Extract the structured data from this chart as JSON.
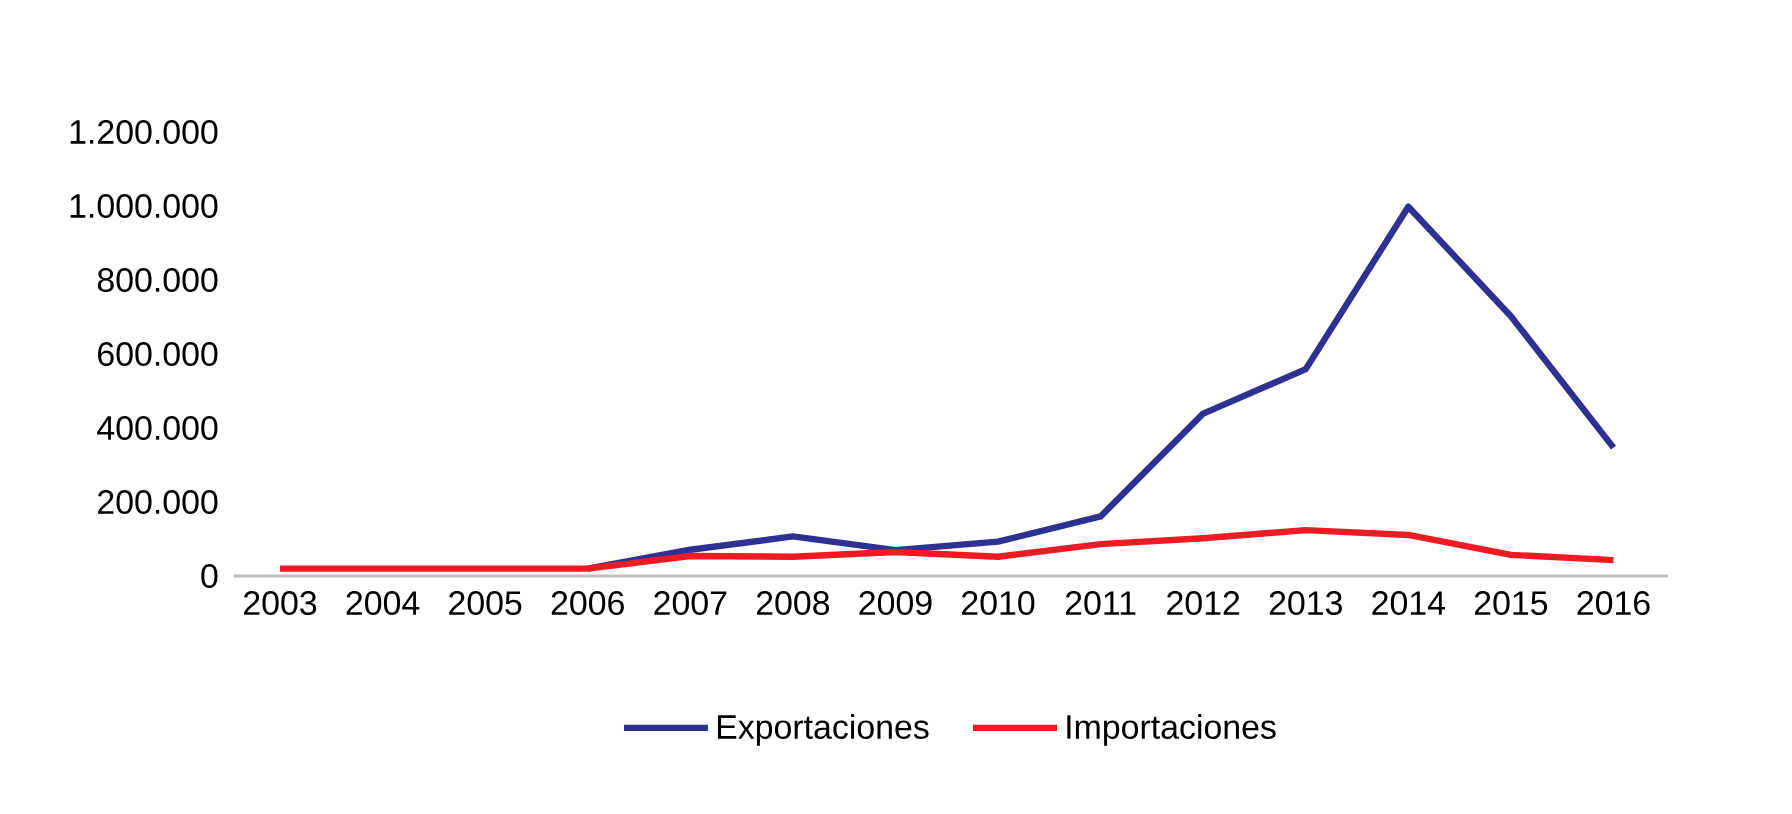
{
  "chart_data": {
    "type": "line",
    "categories": [
      "2003",
      "2004",
      "2005",
      "2006",
      "2007",
      "2008",
      "2009",
      "2010",
      "2011",
      "2012",
      "2013",
      "2014",
      "2015",
      "2016"
    ],
    "series": [
      {
        "name": "Exportaciones",
        "color": "#2e3192",
        "values": [
          null,
          null,
          null,
          20000,
          71000,
          107000,
          70000,
          93000,
          161000,
          439000,
          559000,
          998000,
          702000,
          347000
        ]
      },
      {
        "name": "Importaciones",
        "color": "#ed1c24",
        "values": [
          20000,
          20000,
          20000,
          20000,
          54000,
          52000,
          65000,
          52000,
          86000,
          102000,
          124000,
          111000,
          57000,
          43000
        ]
      }
    ],
    "ylim": [
      0,
      1200000
    ],
    "yticks": [
      0,
      {
        "value": 200000,
        "label": "200.000"
      },
      {
        "value": 400000,
        "label": "400.000"
      },
      {
        "value": 600000,
        "label": "600.000"
      },
      {
        "value": 800000,
        "label": "800.000"
      },
      {
        "value": 1000000,
        "label": "1.000.000"
      },
      {
        "value": 1200000,
        "label": "1.200.000"
      }
    ],
    "grid": false,
    "legend": "bottom",
    "marker": "none",
    "line_style": "solid"
  }
}
